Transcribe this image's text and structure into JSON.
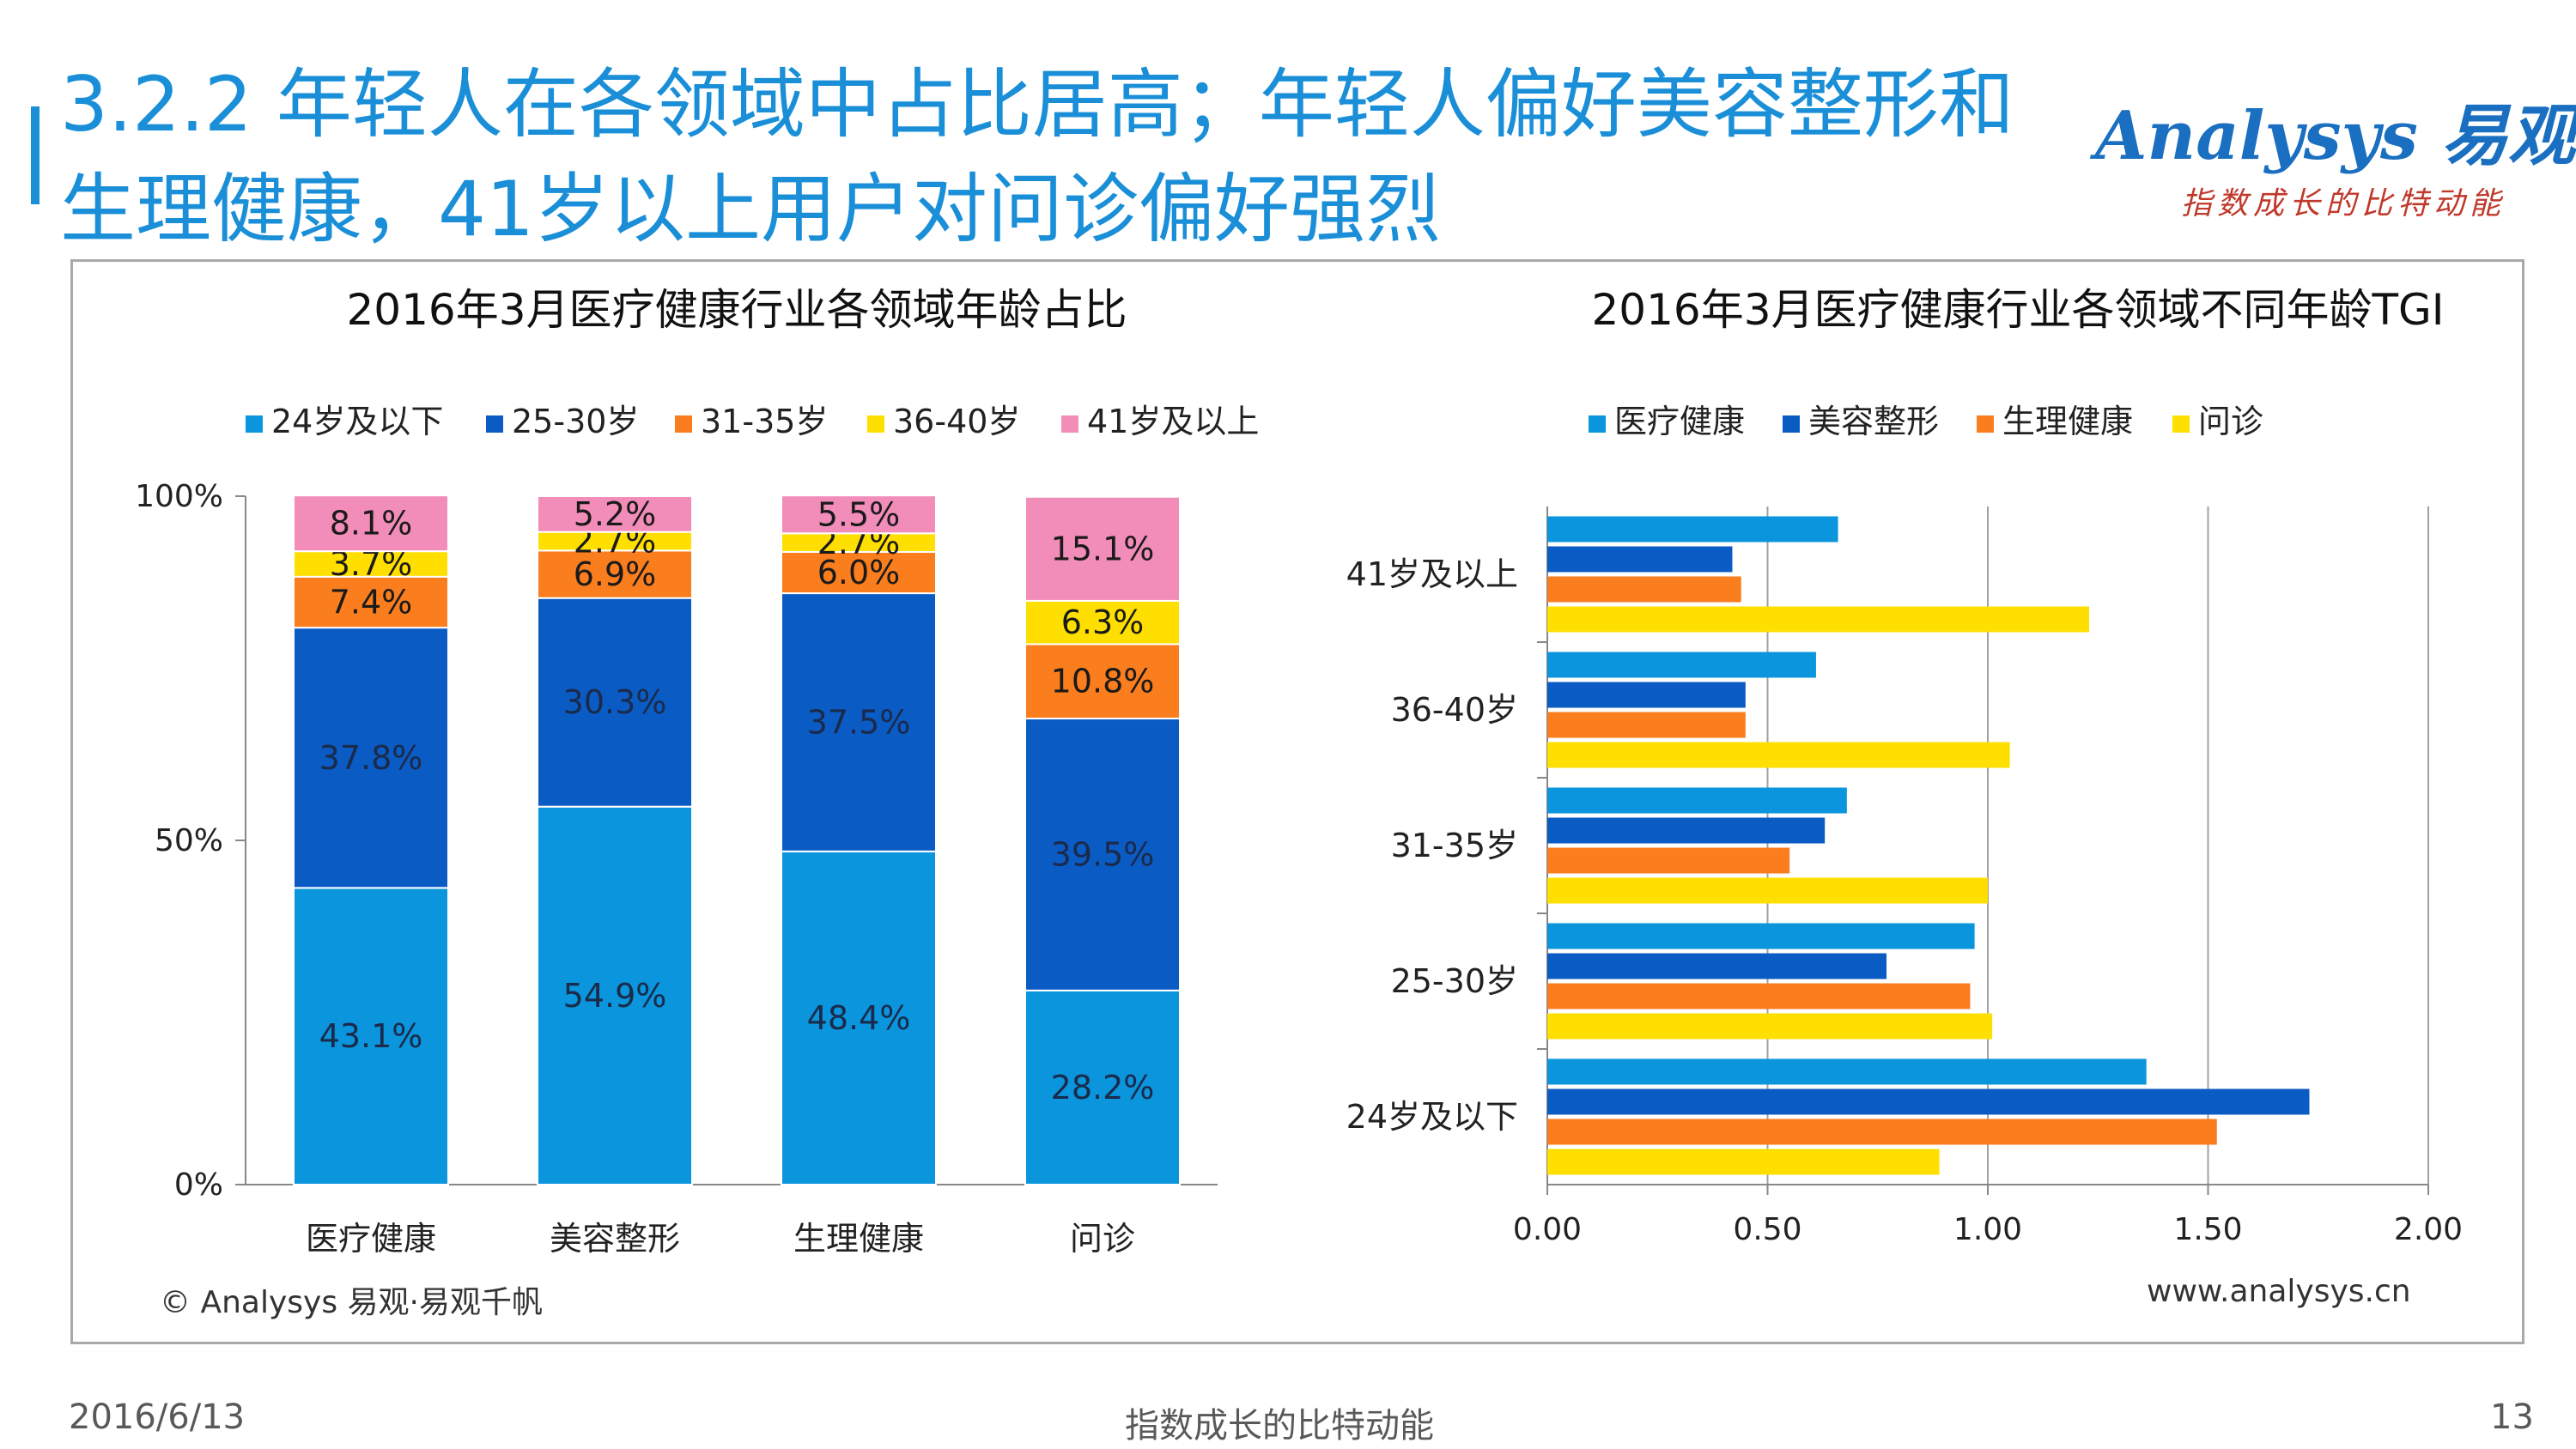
{
  "page": {
    "title_line1": "3.2.2 年轻人在各领域中占比居高；年轻人偏好美容整形和",
    "title_line2": "生理健康，41岁以上用户对问诊偏好强烈",
    "logo_text": "Analysys 易观",
    "logo_tagline": "指数成长的比特动能",
    "copyright": "© Analysys 易观·易观千帆",
    "website": "www.analysys.cn",
    "footer_date": "2016/6/13",
    "footer_center": "指数成长的比特动能",
    "footer_page": "13",
    "accent_color": "#1a8fd8"
  },
  "chart_data": [
    {
      "type": "bar",
      "stacked": true,
      "title": "2016年3月医疗健康行业各领域年龄占比",
      "categories": [
        "医疗健康",
        "美容整形",
        "生理健康",
        "问诊"
      ],
      "y_ticks": [
        "0%",
        "50%",
        "100%"
      ],
      "ylim": [
        0,
        100
      ],
      "legend_position": "top",
      "series": [
        {
          "name": "24岁及以下",
          "color": "#0a95dd",
          "values": [
            43.1,
            54.9,
            48.4,
            28.2
          ],
          "labels": [
            "43.1%",
            "54.9%",
            "48.4%",
            "28.2%"
          ]
        },
        {
          "name": "25-30岁",
          "color": "#0b5bc4",
          "values": [
            37.8,
            30.3,
            37.5,
            39.5
          ],
          "labels": [
            "37.8%",
            "30.3%",
            "37.5%",
            "39.5%"
          ]
        },
        {
          "name": "31-35岁",
          "color": "#fa7d1e",
          "values": [
            7.4,
            6.9,
            6.0,
            10.8
          ],
          "labels": [
            "7.4%",
            "6.9%",
            "6.0%",
            "10.8%"
          ]
        },
        {
          "name": "36-40岁",
          "color": "#ffdf00",
          "values": [
            3.7,
            2.7,
            2.7,
            6.3
          ],
          "labels": [
            "3.7%",
            "2.7%",
            "2.7%",
            "6.3%"
          ]
        },
        {
          "name": "41岁及以上",
          "color": "#f28cb8",
          "values": [
            8.1,
            5.2,
            5.5,
            15.1
          ],
          "labels": [
            "8.1%",
            "5.2%",
            "5.5%",
            "15.1%"
          ]
        }
      ]
    },
    {
      "type": "bar",
      "orientation": "horizontal",
      "title": "2016年3月医疗健康行业各领域不同年龄TGI",
      "categories": [
        "41岁及以上",
        "36-40岁",
        "31-35岁",
        "25-30岁",
        "24岁及以下"
      ],
      "x_ticks": [
        "0.00",
        "0.50",
        "1.00",
        "1.50",
        "2.00"
      ],
      "xlim": [
        0,
        2
      ],
      "grid": true,
      "legend_position": "top",
      "series": [
        {
          "name": "医疗健康",
          "color": "#0a95dd",
          "values": [
            0.66,
            0.61,
            0.68,
            0.97,
            1.36
          ]
        },
        {
          "name": "美容整形",
          "color": "#0b5bc4",
          "values": [
            0.42,
            0.45,
            0.63,
            0.77,
            1.73
          ]
        },
        {
          "name": "生理健康",
          "color": "#fa7d1e",
          "values": [
            0.44,
            0.45,
            0.55,
            0.96,
            1.52
          ]
        },
        {
          "name": "问诊",
          "color": "#ffdf00",
          "values": [
            1.23,
            1.05,
            1.0,
            1.01,
            0.89
          ]
        }
      ]
    }
  ]
}
